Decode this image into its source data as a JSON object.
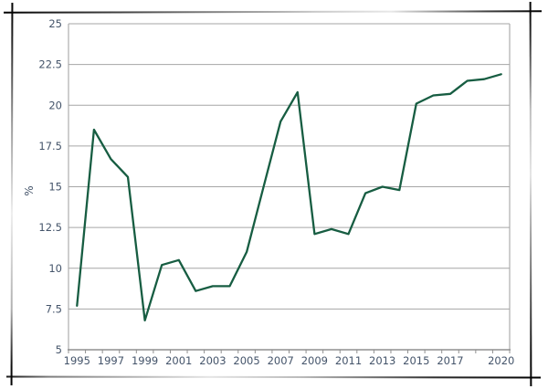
{
  "chart_data": {
    "type": "line",
    "title": "",
    "xlabel": "",
    "ylabel": "%",
    "x": [
      1995,
      1996,
      1997,
      1998,
      1999,
      2000,
      2001,
      2002,
      2003,
      2004,
      2005,
      2006,
      2007,
      2008,
      2009,
      2010,
      2011,
      2012,
      2013,
      2014,
      2015,
      2016,
      2017,
      2018,
      2019,
      2020
    ],
    "series": [
      {
        "name": "percent",
        "values": [
          7.7,
          18.5,
          16.7,
          15.6,
          6.8,
          10.2,
          10.5,
          8.6,
          8.9,
          8.9,
          11.0,
          15.0,
          19.0,
          20.8,
          12.1,
          12.4,
          12.1,
          14.6,
          15.0,
          14.8,
          20.1,
          20.6,
          20.7,
          21.5,
          21.6,
          21.9
        ]
      }
    ],
    "ylim": [
      5,
      25
    ],
    "ytick_step": 2.5,
    "ytick_labels": [
      "5",
      "7.5",
      "10",
      "12.5",
      "15",
      "17.5",
      "20",
      "22.5",
      "25"
    ],
    "xtick_labels": [
      "1995",
      "1997",
      "1999",
      "2001",
      "2003",
      "2005",
      "2007",
      "2009",
      "2011",
      "2013",
      "2015",
      "2017",
      "2020"
    ],
    "grid": "horizontal",
    "legend_position": "none",
    "colors": {
      "line": "#175d42",
      "grid": "#a6a6a6",
      "axis": "#8f8f8f",
      "label": "#44546a",
      "frame_sketch": "#000000",
      "background": "#ffffff"
    }
  }
}
